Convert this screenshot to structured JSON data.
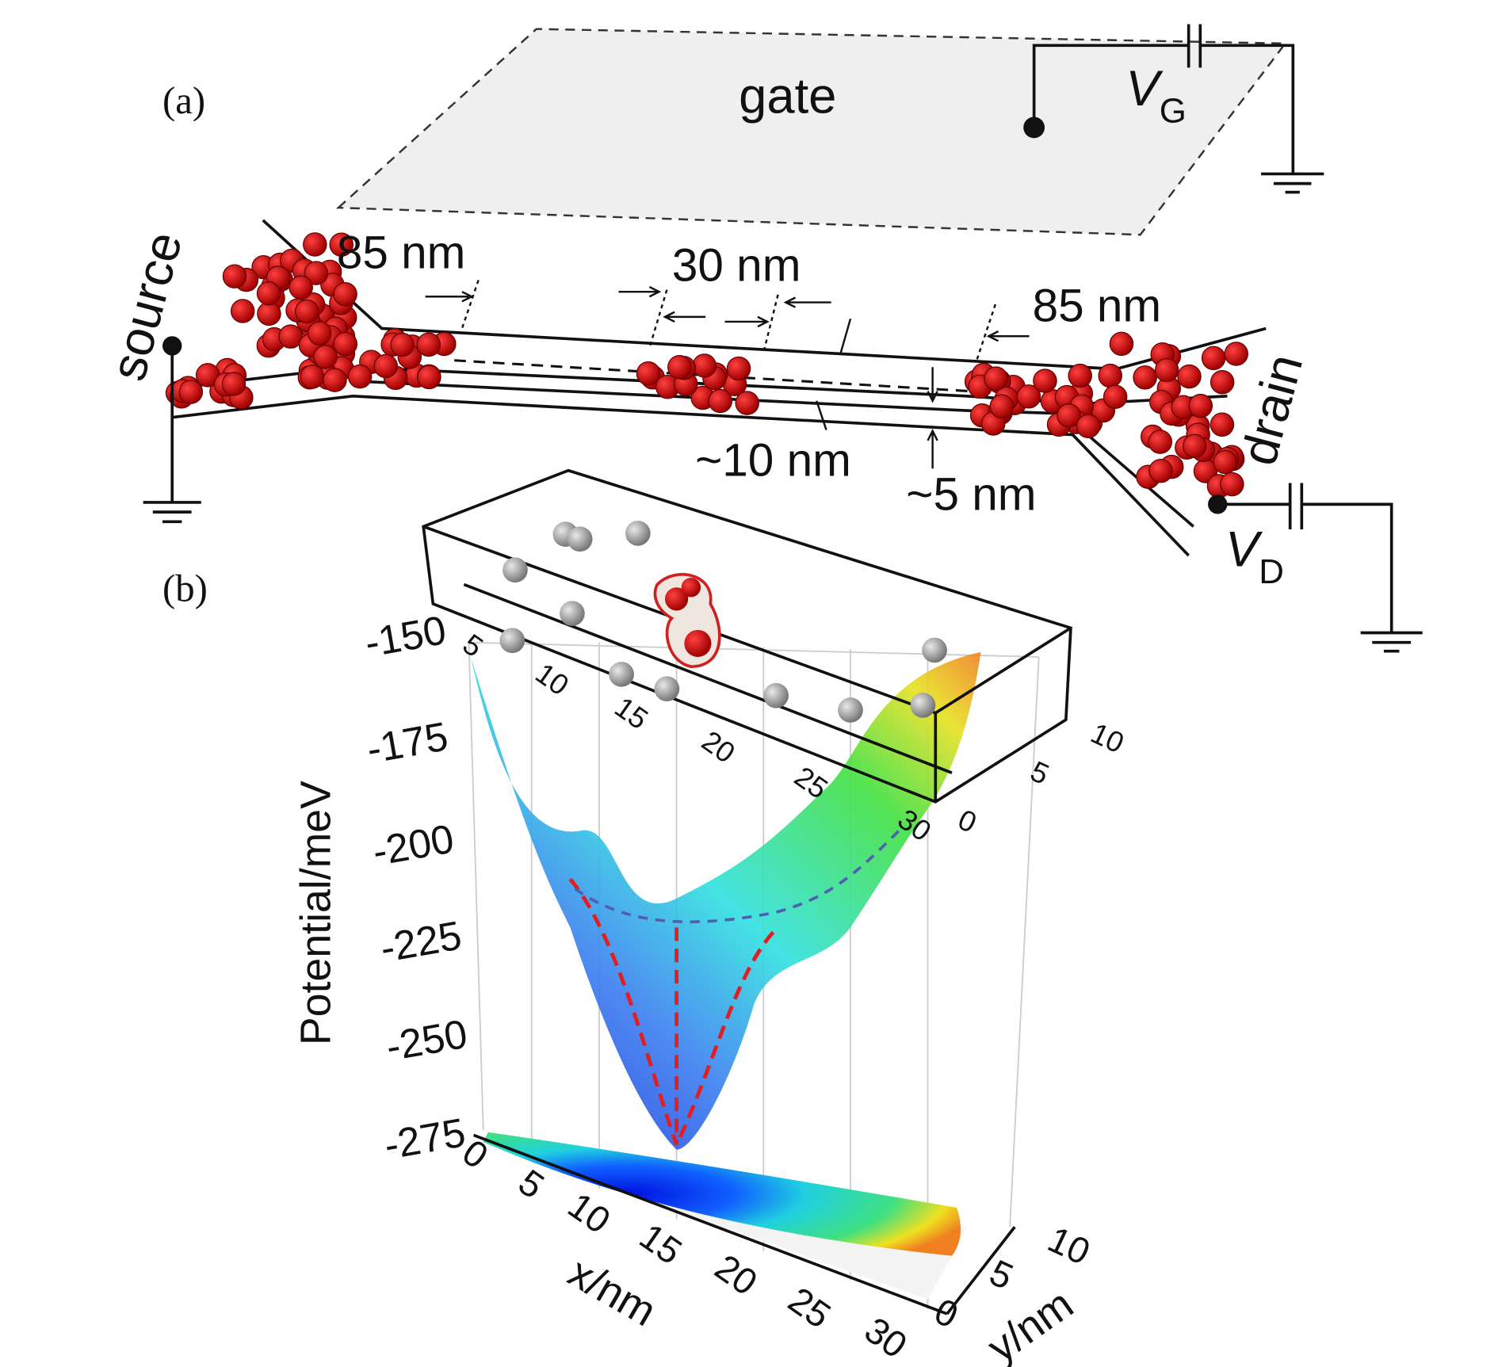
{
  "panel_a": {
    "label": "(a)",
    "gate": "gate",
    "gate_voltage": {
      "symbol": "V",
      "subscript": "G"
    },
    "source": "source",
    "drain": "drain",
    "drain_voltage": {
      "symbol": "V",
      "subscript": "D"
    },
    "dimensions": [
      "85 nm",
      "30 nm",
      "85 nm",
      "~10 nm",
      "~5 nm"
    ]
  },
  "panel_b": {
    "label": "(b)",
    "z_axis": {
      "label": "Potential/meV",
      "ticks": [
        "-150",
        "-175",
        "-200",
        "-225",
        "-250",
        "-275"
      ]
    },
    "x_axis": {
      "label": "x/nm",
      "ticks": [
        "0",
        "5",
        "10",
        "15",
        "20",
        "25",
        "30"
      ]
    },
    "y_axis": {
      "label": "y/nm",
      "ticks": [
        "0",
        "5",
        "10"
      ]
    },
    "inset_x_ticks": [
      "5",
      "10",
      "15",
      "20",
      "25",
      "30"
    ],
    "inset_y_ticks": [
      "0",
      "5",
      "10"
    ]
  }
}
